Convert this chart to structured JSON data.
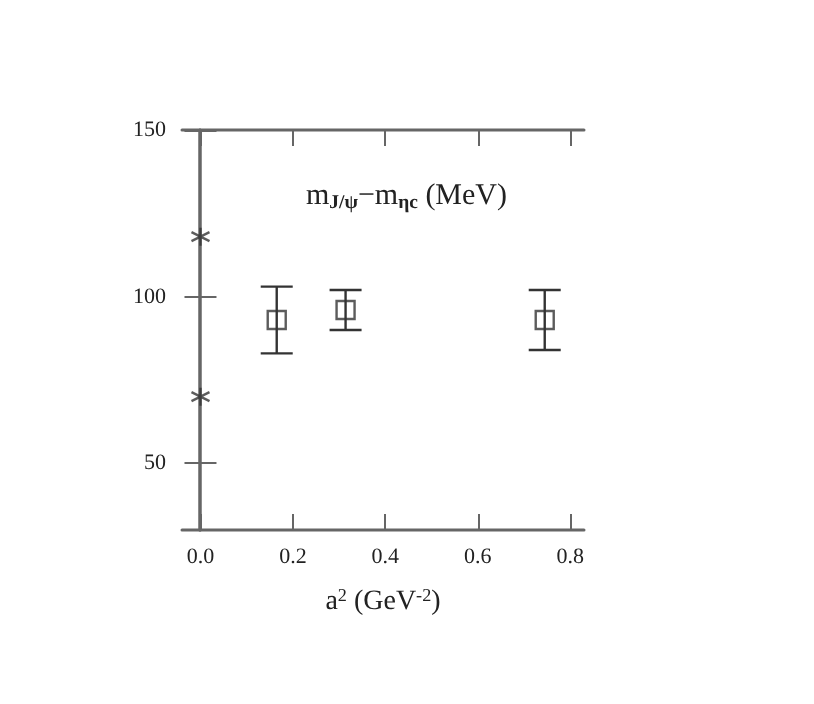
{
  "chart_data": {
    "type": "scatter",
    "title": "m$_{J/ψ}$−m$_{ηc}$ (MeV)",
    "xlabel": "a$^{2}$ (GeV$^{-2}$)",
    "xlim": [
      -0.04,
      0.83
    ],
    "xticks": [
      {
        "value": 0,
        "label": "0.0"
      },
      0.2,
      0.4,
      0.6,
      0.8
    ],
    "ylim": [
      30,
      150
    ],
    "yticks": [
      50,
      100,
      150
    ],
    "grid": false,
    "series": [
      {
        "marker": "square",
        "color": "#333333",
        "x": [
          0.165,
          0.314,
          0.745
        ],
        "values": [
          93,
          96,
          93
        ],
        "errors": [
          [
            83,
            103
          ],
          [
            90,
            102
          ],
          [
            84,
            102
          ]
        ]
      },
      {
        "marker": "cross",
        "color": "#333333",
        "x": [
          0,
          0
        ],
        "values": [
          118,
          70
        ]
      }
    ]
  }
}
